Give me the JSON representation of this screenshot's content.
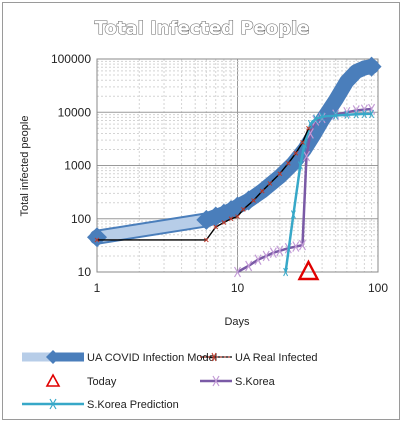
{
  "chart_data": {
    "type": "line",
    "title": "Total Infected People",
    "xlabel": "Days",
    "ylabel": "Total infected people",
    "x_scale": "log",
    "y_scale": "log",
    "xlim": [
      1,
      100
    ],
    "ylim": [
      10,
      100000
    ],
    "x_ticks": [
      "1",
      "10",
      "100"
    ],
    "y_ticks": [
      "10",
      "100",
      "1000",
      "10000",
      "100000"
    ],
    "grid": true,
    "legend_position": "bottom",
    "series": [
      {
        "name": "UA COVID Infection Model",
        "color": "#4a7ebb",
        "points": [
          [
            1,
            45
          ],
          [
            6,
            95
          ],
          [
            7,
            110
          ],
          [
            8,
            125
          ],
          [
            9,
            145
          ],
          [
            10,
            170
          ],
          [
            12,
            220
          ],
          [
            15,
            330
          ],
          [
            20,
            620
          ],
          [
            25,
            1100
          ],
          [
            30,
            2000
          ],
          [
            35,
            3800
          ],
          [
            40,
            7000
          ],
          [
            50,
            17000
          ],
          [
            60,
            38000
          ],
          [
            70,
            58000
          ],
          [
            80,
            68000
          ],
          [
            90,
            72000
          ]
        ]
      },
      {
        "name": "UA COVID Infection Model (light)",
        "color": "#b7cde8",
        "points": [
          [
            1,
            45
          ],
          [
            6,
            95
          ]
        ]
      },
      {
        "name": "UA Real Infected",
        "color": "#000000",
        "points": [
          [
            1,
            40
          ],
          [
            6,
            40
          ],
          [
            7,
            70
          ],
          [
            8,
            85
          ],
          [
            9,
            100
          ],
          [
            10,
            110
          ],
          [
            11,
            150
          ],
          [
            13,
            220
          ],
          [
            15,
            330
          ],
          [
            17,
            460
          ],
          [
            20,
            700
          ],
          [
            23,
            1100
          ],
          [
            26,
            1700
          ],
          [
            29,
            2700
          ],
          [
            32,
            5000
          ]
        ]
      },
      {
        "name": "S.Korea",
        "color": "#7a5aa6",
        "points": [
          [
            10,
            10
          ],
          [
            12,
            13
          ],
          [
            14,
            17
          ],
          [
            16,
            20
          ],
          [
            18,
            23
          ],
          [
            20,
            25
          ],
          [
            23,
            28
          ],
          [
            26,
            30
          ],
          [
            29,
            32
          ],
          [
            31,
            1500
          ],
          [
            33,
            4000
          ],
          [
            36,
            7000
          ],
          [
            40,
            7800
          ],
          [
            50,
            9000
          ],
          [
            60,
            10000
          ],
          [
            70,
            10800
          ],
          [
            80,
            11200
          ],
          [
            90,
            11500
          ]
        ]
      },
      {
        "name": "S.Korea Prediction",
        "color": "#37a8c8",
        "points": [
          [
            22,
            10
          ],
          [
            25,
            120
          ],
          [
            28,
            1000
          ],
          [
            30,
            2500
          ],
          [
            33,
            6000
          ],
          [
            36,
            7500
          ],
          [
            40,
            8200
          ],
          [
            50,
            8700
          ],
          [
            60,
            9000
          ],
          [
            70,
            9200
          ],
          [
            80,
            9300
          ],
          [
            90,
            9300
          ]
        ]
      }
    ],
    "markers": [
      {
        "name": "Today",
        "x": 32,
        "y": 10,
        "color": "#e00000",
        "shape": "triangle"
      }
    ]
  },
  "legend": {
    "items": [
      {
        "label": "UA COVID Infection Model"
      },
      {
        "label": "UA Real Infected"
      },
      {
        "label": "Today"
      },
      {
        "label": "S.Korea"
      },
      {
        "label": "S.Korea Prediction"
      }
    ]
  }
}
